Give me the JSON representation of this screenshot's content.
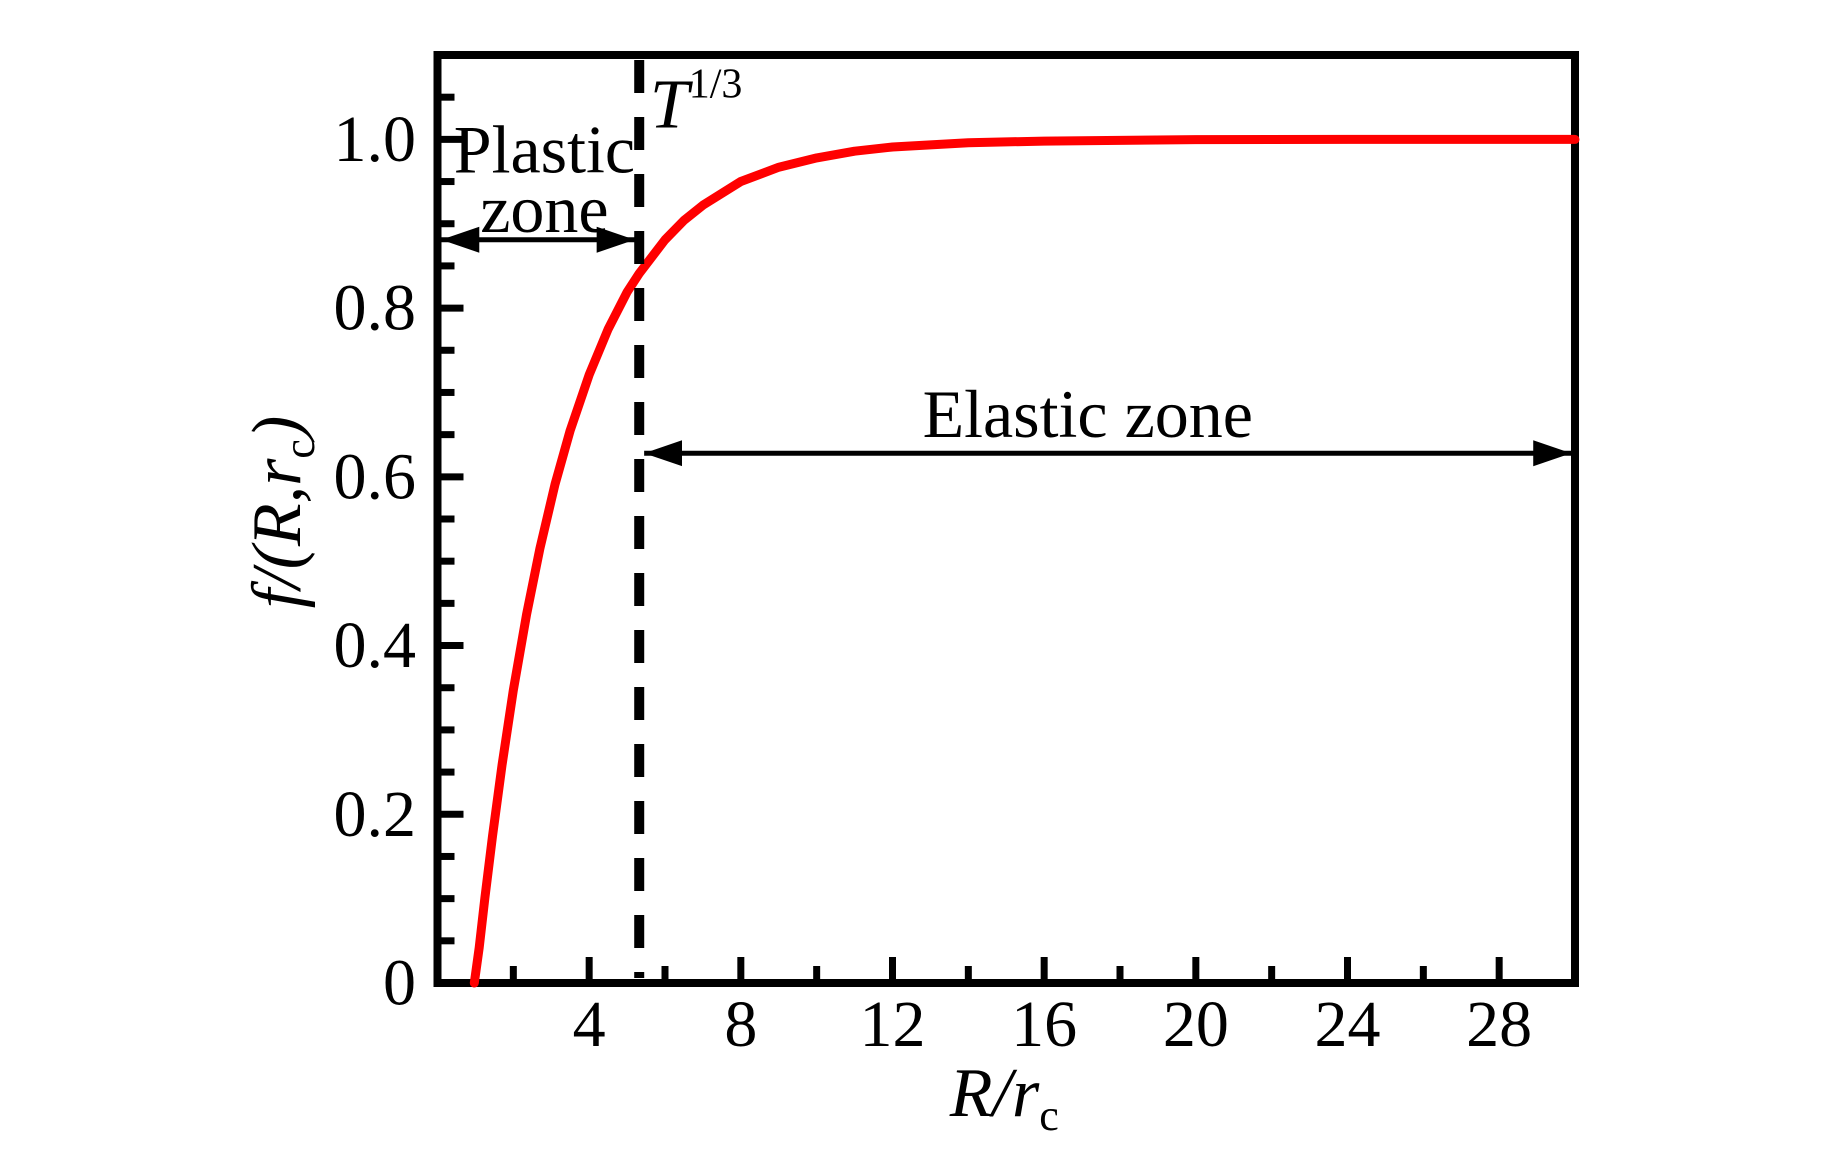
{
  "figure": {
    "background_color": "#ffffff",
    "axis_color": "#000000",
    "curve_color": "#ff0000"
  },
  "chart_data": {
    "type": "line",
    "title": "",
    "xlabel": "R/r_c",
    "ylabel": "f/(R,r_c)",
    "xlim": [
      0,
      30
    ],
    "ylim": [
      0,
      1.1
    ],
    "grid": false,
    "legend": false,
    "x_major_ticks": {
      "values": [
        4,
        8,
        12,
        16,
        20,
        24,
        28
      ],
      "labels": [
        "4",
        "8",
        "12",
        "16",
        "20",
        "24",
        "28"
      ]
    },
    "x_minor_ticks": [
      2,
      6,
      10,
      14,
      18,
      22,
      26
    ],
    "y_major_ticks": {
      "values": [
        0,
        0.2,
        0.4,
        0.6,
        0.8,
        1.0
      ],
      "labels": [
        "0",
        "0.2",
        "0.4",
        "0.6",
        "0.8",
        "1.0"
      ]
    },
    "y_minor_ticks": [
      0.05,
      0.1,
      0.15,
      0.25,
      0.3,
      0.35,
      0.45,
      0.5,
      0.55,
      0.65,
      0.7,
      0.75,
      0.85,
      0.9,
      0.95,
      1.05
    ],
    "series": [
      {
        "name": "f/(R,rc)",
        "color": "#ff0000",
        "points": [
          [
            0.97,
            0
          ],
          [
            1.1,
            0.042
          ],
          [
            1.25,
            0.101
          ],
          [
            1.45,
            0.174
          ],
          [
            1.7,
            0.258
          ],
          [
            2.0,
            0.347
          ],
          [
            2.35,
            0.437
          ],
          [
            2.7,
            0.515
          ],
          [
            3.1,
            0.591
          ],
          [
            3.5,
            0.655
          ],
          [
            4.0,
            0.721
          ],
          [
            4.5,
            0.775
          ],
          [
            5.0,
            0.819
          ],
          [
            5.32,
            0.841
          ],
          [
            6.0,
            0.881
          ],
          [
            6.5,
            0.904
          ],
          [
            7.0,
            0.922
          ],
          [
            8.0,
            0.95
          ],
          [
            9.0,
            0.967
          ],
          [
            10.0,
            0.978
          ],
          [
            11.0,
            0.986
          ],
          [
            12.0,
            0.991
          ],
          [
            14.0,
            0.996
          ],
          [
            16.0,
            0.998
          ],
          [
            20.0,
            0.9997
          ],
          [
            24.0,
            0.9999
          ],
          [
            28.0,
            1.0
          ],
          [
            30.0,
            1.0
          ]
        ]
      }
    ],
    "labels": {
      "x_axis": {
        "main": "R/r",
        "sub": "c"
      },
      "y_axis": {
        "pre": "f/(R,r",
        "sub": "c",
        "post": ")"
      },
      "t_marker": {
        "base": "T",
        "sup": "1/3"
      },
      "plastic_zone_line1": "Plastic",
      "plastic_zone_line2": "zone",
      "elastic_zone": "Elastic zone"
    },
    "annotations": {
      "dashed_line": {
        "x": 5.32,
        "y_top": 1.1,
        "y_bottom": 0
      },
      "t_marker_pos": {
        "x": 5.6,
        "y": 1.014
      },
      "plastic_zone": {
        "text_x": 2.82,
        "text_y_line1": 0.961,
        "text_y_line2": 0.89,
        "arrow": {
          "x1": 0.1,
          "x2": 5.2,
          "y": 0.881
        }
      },
      "elastic_zone": {
        "text_x": 17.15,
        "text_y": 0.647,
        "arrow": {
          "x1": 5.45,
          "x2": 29.9,
          "y": 0.628
        }
      }
    }
  }
}
